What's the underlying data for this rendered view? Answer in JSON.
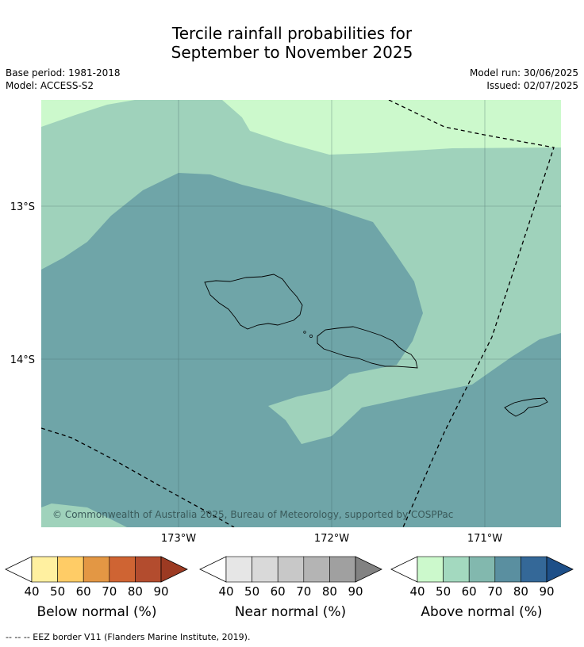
{
  "title_line1": "Tercile rainfall probabilities for",
  "title_line2": "September to November 2025",
  "meta_left": {
    "base_period": "Base period: 1981-2018",
    "model": "Model: ACCESS-S2"
  },
  "meta_right": {
    "model_run": "Model run: 30/06/2025",
    "issued": "Issued: 02/07/2025"
  },
  "map": {
    "lat_labels": [
      "13°S",
      "14°S"
    ],
    "lon_labels": [
      "173°W",
      "172°W",
      "171°W"
    ],
    "copyright": "© Commonwealth of Australia 2025, Bureau of Meteorology, supported by COSPPac",
    "zone_colors": {
      "above_40_50": "#ccf9cc",
      "above_50_60": "#9fd2bb",
      "above_60_70": "#6fa5a8"
    },
    "eez_style": "dashed black"
  },
  "colorbars": [
    {
      "label": "Below normal (%)",
      "ticks": [
        "40",
        "50",
        "60",
        "70",
        "80",
        "90"
      ],
      "colors": [
        "#fff0a0",
        "#ffcc66",
        "#e39744",
        "#cf6433",
        "#b34c2e",
        "#9c3a22"
      ]
    },
    {
      "label": "Near normal (%)",
      "ticks": [
        "40",
        "50",
        "60",
        "70",
        "80",
        "90"
      ],
      "colors": [
        "#e6e6e6",
        "#d9d9d9",
        "#c8c8c8",
        "#b4b4b4",
        "#a0a0a0",
        "#828282"
      ]
    },
    {
      "label": "Above normal (%)",
      "ticks": [
        "40",
        "50",
        "60",
        "70",
        "80",
        "90"
      ],
      "colors": [
        "#ccf9cc",
        "#a3d9bf",
        "#82b8ae",
        "#5a8fa0",
        "#346898",
        "#1d4f88"
      ]
    }
  ],
  "footer": "--  --  -- EEZ border V11 (Flanders Marine Institute, 2019)."
}
